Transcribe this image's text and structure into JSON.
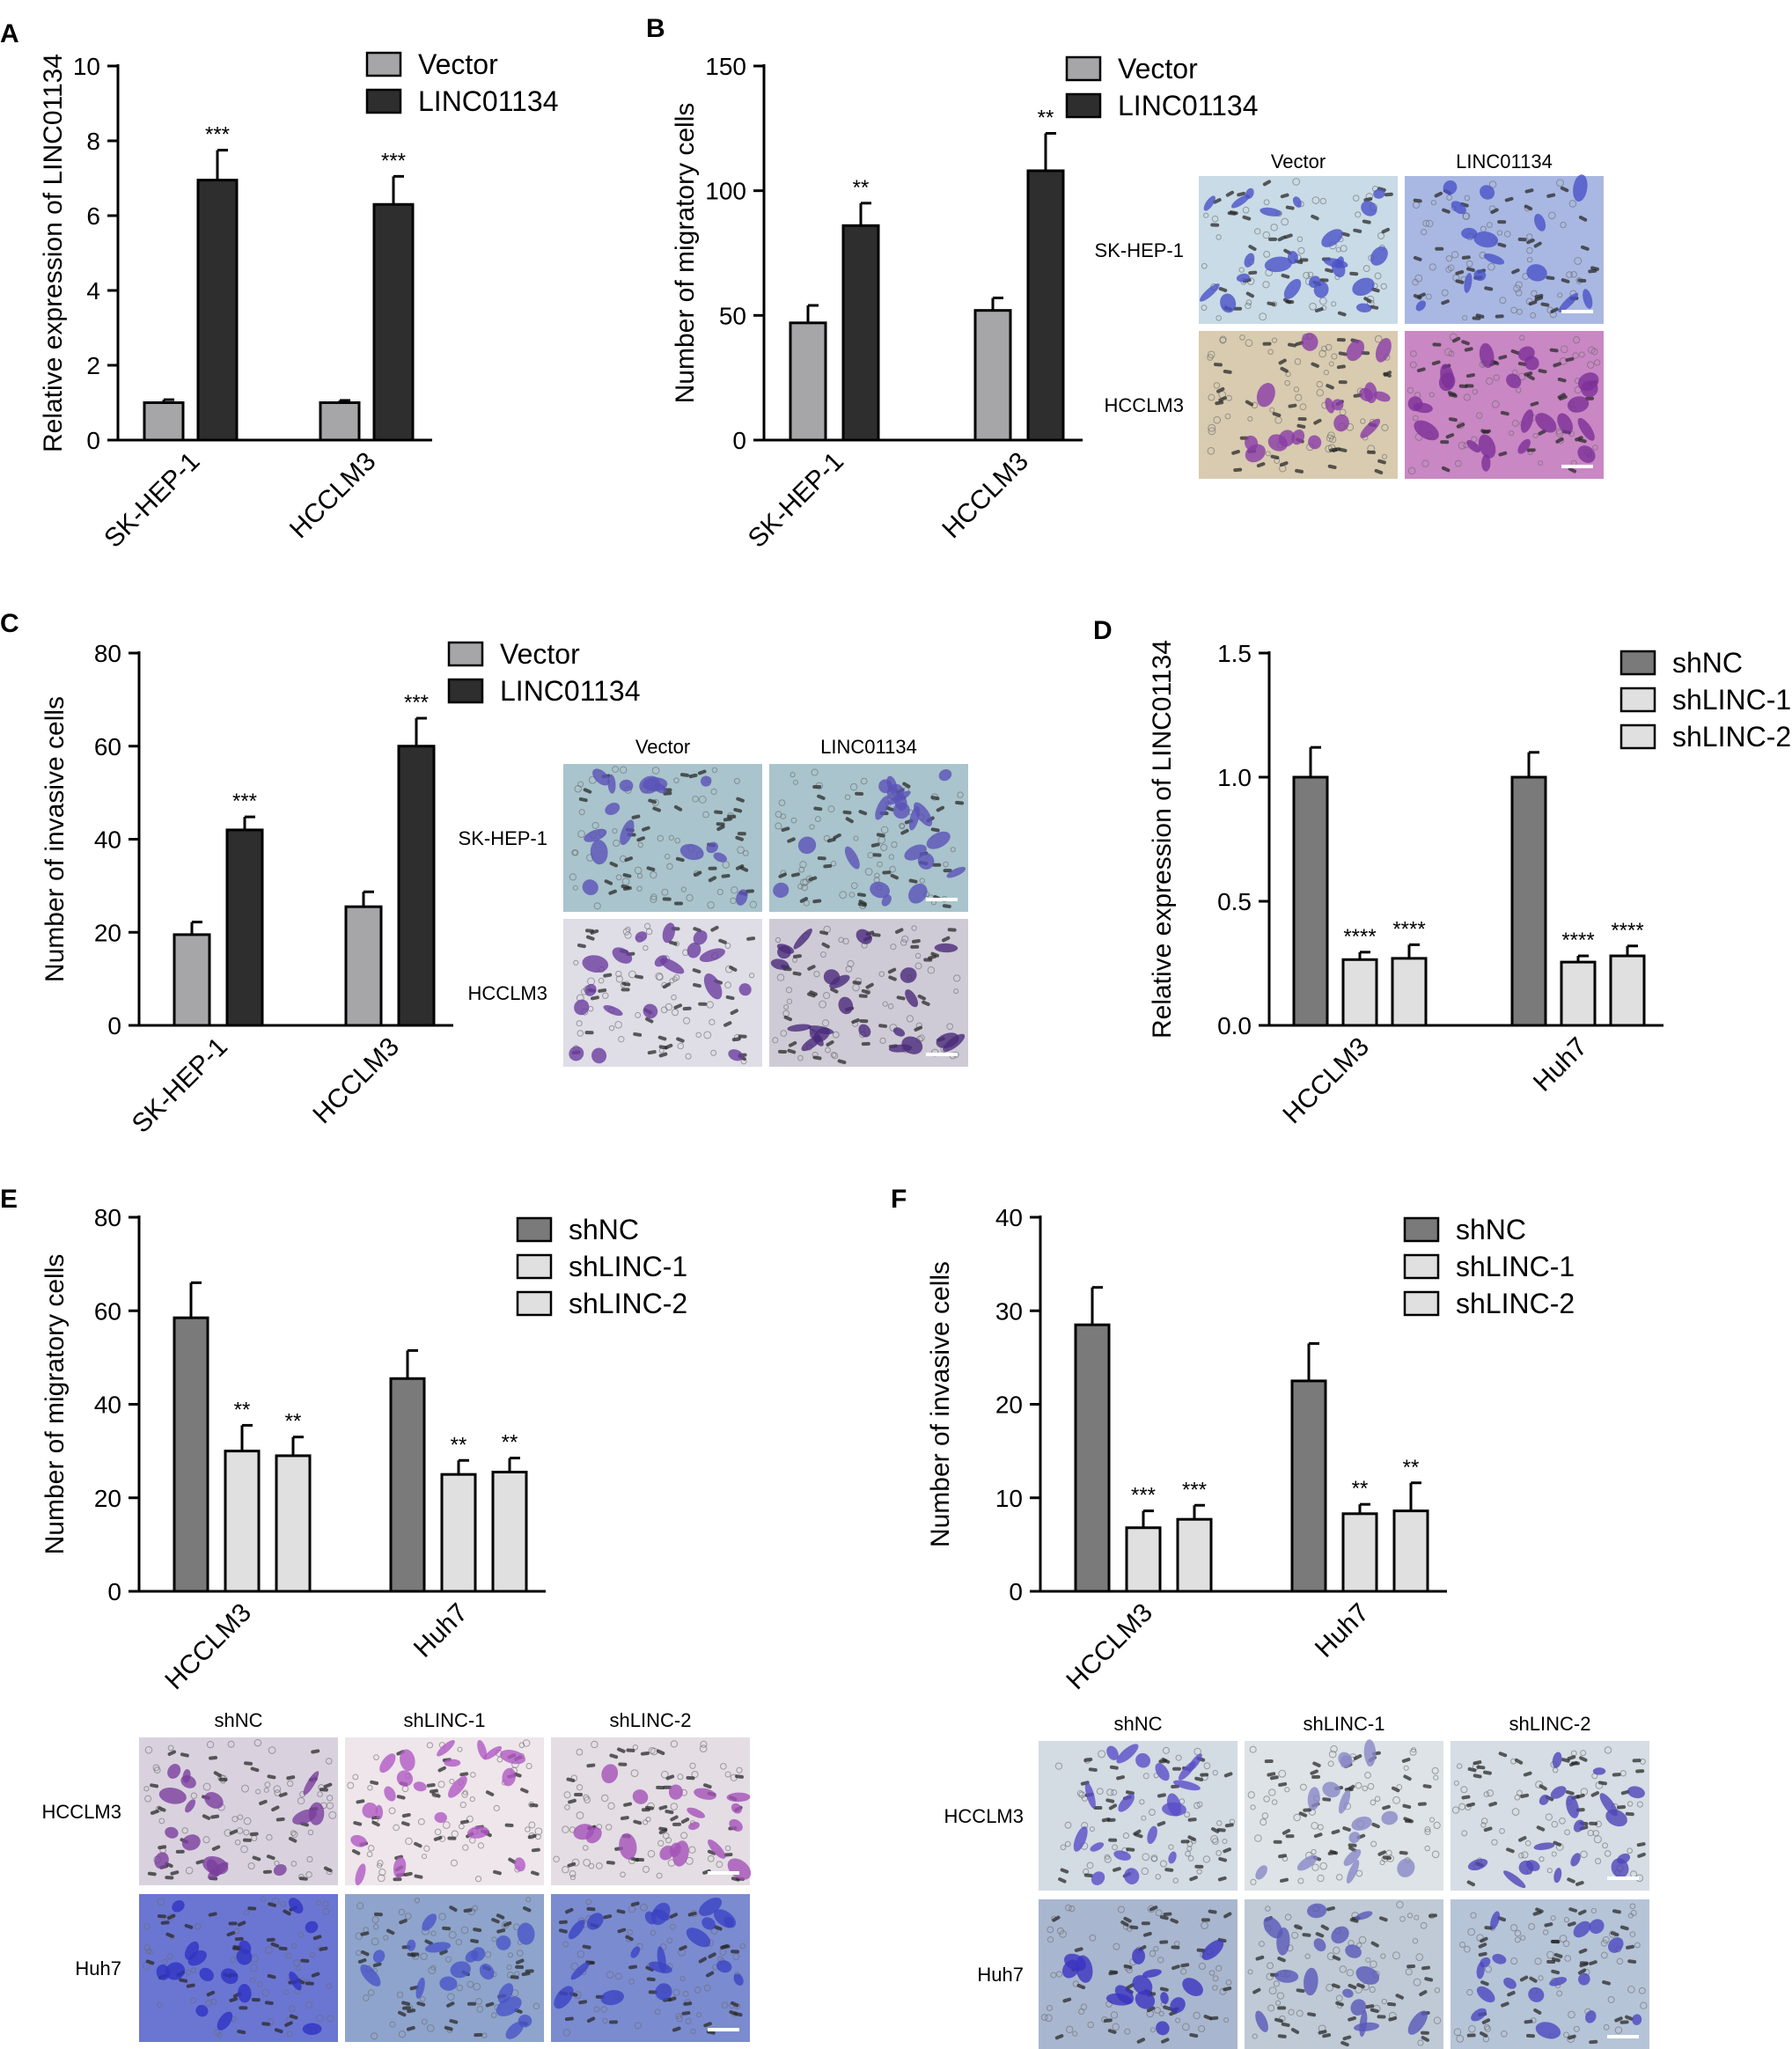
{
  "chart_data": [
    {
      "panel": "A",
      "type": "bar",
      "ylabel": "Relative expression of LINC01134",
      "ylim": [
        0,
        10
      ],
      "yticks": [
        0,
        2,
        4,
        6,
        8,
        10
      ],
      "categories": [
        "SK-HEP-1",
        "HCCLM3"
      ],
      "series": [
        {
          "name": "Vector",
          "color": "#a6a6a8",
          "values": [
            1.0,
            1.0
          ],
          "errors": [
            0.08,
            0.06
          ],
          "sig": [
            "",
            ""
          ]
        },
        {
          "name": "LINC01134",
          "color": "#2e2e2e",
          "values": [
            6.95,
            6.3
          ],
          "errors": [
            0.8,
            0.75
          ],
          "sig": [
            "***",
            "***"
          ]
        }
      ]
    },
    {
      "panel": "B",
      "type": "bar",
      "ylabel": "Number of migratory cells",
      "ylim": [
        0,
        150
      ],
      "yticks": [
        0,
        50,
        100,
        150
      ],
      "categories": [
        "SK-HEP-1",
        "HCCLM3"
      ],
      "series": [
        {
          "name": "Vector",
          "color": "#a6a6a8",
          "values": [
            47,
            52
          ],
          "errors": [
            7,
            5
          ],
          "sig": [
            "",
            ""
          ]
        },
        {
          "name": "LINC01134",
          "color": "#2e2e2e",
          "values": [
            86,
            108
          ],
          "errors": [
            9,
            15
          ],
          "sig": [
            "**",
            "**"
          ]
        }
      ]
    },
    {
      "panel": "C",
      "type": "bar",
      "ylabel": "Number of invasive cells",
      "ylim": [
        0,
        80
      ],
      "yticks": [
        0,
        20,
        40,
        60,
        80
      ],
      "categories": [
        "SK-HEP-1",
        "HCCLM3"
      ],
      "series": [
        {
          "name": "Vector",
          "color": "#a6a6a8",
          "values": [
            19.5,
            25.5
          ],
          "errors": [
            2.7,
            3.2
          ],
          "sig": [
            "",
            ""
          ]
        },
        {
          "name": "LINC01134",
          "color": "#2e2e2e",
          "values": [
            42,
            60
          ],
          "errors": [
            2.8,
            6
          ],
          "sig": [
            "***",
            "***"
          ]
        }
      ]
    },
    {
      "panel": "D",
      "type": "bar",
      "ylabel": "Relative expression of LINC01134",
      "ylim": [
        0,
        1.5
      ],
      "yticks": [
        "0.0",
        "0.5",
        "1.0",
        "1.5"
      ],
      "categories": [
        "HCCLM3",
        "Huh7"
      ],
      "series": [
        {
          "name": "shNC",
          "color": "#7a7a7a",
          "values": [
            1.0,
            1.0
          ],
          "errors": [
            0.12,
            0.1
          ],
          "sig": [
            "",
            ""
          ]
        },
        {
          "name": "shLINC-1",
          "color": "#e0e0e0",
          "values": [
            0.265,
            0.255
          ],
          "errors": [
            0.03,
            0.025
          ],
          "sig": [
            "****",
            "****"
          ]
        },
        {
          "name": "shLINC-2",
          "color": "#e0e0e0",
          "values": [
            0.27,
            0.28
          ],
          "errors": [
            0.055,
            0.04
          ],
          "sig": [
            "****",
            "****"
          ]
        }
      ]
    },
    {
      "panel": "E",
      "type": "bar",
      "ylabel": "Number of migratory cells",
      "ylim": [
        0,
        80
      ],
      "yticks": [
        0,
        20,
        40,
        60,
        80
      ],
      "categories": [
        "HCCLM3",
        "Huh7"
      ],
      "series": [
        {
          "name": "shNC",
          "color": "#7a7a7a",
          "values": [
            58.5,
            45.5
          ],
          "errors": [
            7.5,
            6
          ],
          "sig": [
            "",
            ""
          ]
        },
        {
          "name": "shLINC-1",
          "color": "#e0e0e0",
          "values": [
            30,
            25
          ],
          "errors": [
            5.5,
            3
          ],
          "sig": [
            "**",
            "**"
          ]
        },
        {
          "name": "shLINC-2",
          "color": "#e0e0e0",
          "values": [
            29,
            25.5
          ],
          "errors": [
            4,
            3
          ],
          "sig": [
            "**",
            "**"
          ]
        }
      ]
    },
    {
      "panel": "F",
      "type": "bar",
      "ylabel": "Number of invasive cells",
      "ylim": [
        0,
        40
      ],
      "yticks": [
        0,
        10,
        20,
        30,
        40
      ],
      "categories": [
        "HCCLM3",
        "Huh7"
      ],
      "series": [
        {
          "name": "shNC",
          "color": "#7a7a7a",
          "values": [
            28.5,
            22.5
          ],
          "errors": [
            4,
            4
          ],
          "sig": [
            "",
            ""
          ]
        },
        {
          "name": "shLINC-1",
          "color": "#e0e0e0",
          "values": [
            6.8,
            8.3
          ],
          "errors": [
            1.8,
            1
          ],
          "sig": [
            "***",
            "**"
          ]
        },
        {
          "name": "shLINC-2",
          "color": "#e0e0e0",
          "values": [
            7.7,
            8.6
          ],
          "errors": [
            1.5,
            3
          ],
          "sig": [
            "***",
            "**"
          ]
        }
      ]
    }
  ],
  "micrographs": [
    {
      "panel": "B",
      "columns": [
        "Vector",
        "LINC01134"
      ],
      "rows": [
        "SK-HEP-1",
        "HCCLM3"
      ],
      "tints": [
        [
          "#4b52c8",
          "#4b52c8"
        ],
        [
          "#8a3ca6",
          "#7d2f98"
        ]
      ],
      "backgrounds": [
        [
          "#c9dbe6",
          "#a9b8e2"
        ],
        [
          "#d8cbb0",
          "#c987c4"
        ]
      ]
    },
    {
      "panel": "C",
      "columns": [
        "Vector",
        "LINC01134"
      ],
      "rows": [
        "SK-HEP-1",
        "HCCLM3"
      ],
      "tints": [
        [
          "#5a53b8",
          "#5a53b8"
        ],
        [
          "#6b3fa0",
          "#4a2a7a"
        ]
      ],
      "backgrounds": [
        [
          "#a9c4cc",
          "#a9c4cc"
        ],
        [
          "#dfdde6",
          "#cfcbd6"
        ]
      ]
    },
    {
      "panel": "E",
      "columns": [
        "shNC",
        "shLINC-1",
        "shLINC-2"
      ],
      "rows": [
        "HCCLM3",
        "Huh7"
      ],
      "tints": [
        [
          "#7a3f9e",
          "#b05ac4",
          "#a452b8"
        ],
        [
          "#2f33c4",
          "#4a55c8",
          "#3c43c4"
        ]
      ],
      "backgrounds": [
        [
          "#d9d2de",
          "#eee6ea",
          "#e4dde4"
        ],
        [
          "#6b76d2",
          "#8ea4cc",
          "#7b8bd0"
        ]
      ]
    },
    {
      "panel": "F",
      "columns": [
        "shNC",
        "shLINC-1",
        "shLINC-2"
      ],
      "rows": [
        "HCCLM3",
        "Huh7"
      ],
      "tints": [
        [
          "#5b4ec8",
          "#8a87c8",
          "#4e46b8"
        ],
        [
          "#3b35c0",
          "#5a58b8",
          "#4c48c0"
        ]
      ],
      "backgrounds": [
        [
          "#d3dbe3",
          "#dde3e6",
          "#d6dde4"
        ],
        [
          "#a9b6cf",
          "#bfcad6",
          "#b6c4d8"
        ]
      ]
    }
  ]
}
